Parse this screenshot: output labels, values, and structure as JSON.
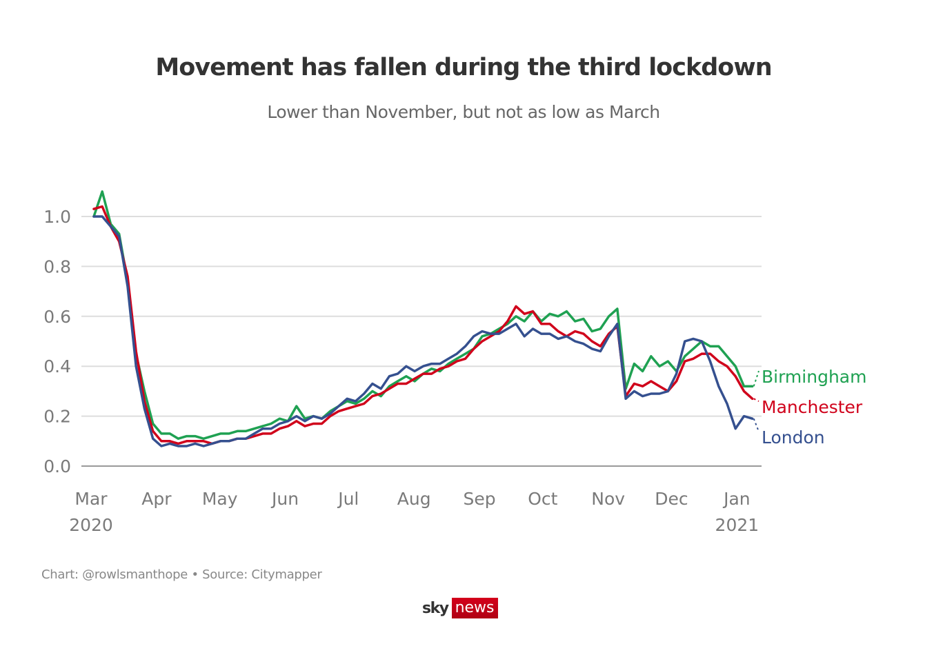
{
  "header": {
    "title": "Movement has fallen during the third lockdown",
    "subtitle": "Lower than November, but not as low as March"
  },
  "footer": {
    "credit": "Chart: @rowlsmanthope • Source: Citymapper",
    "logo_sky": "sky",
    "logo_news": "news"
  },
  "chart_data": {
    "type": "line",
    "title": "Movement has fallen during the third lockdown",
    "subtitle": "Lower than November, but not as low as March",
    "xlabel": "",
    "ylabel": "",
    "ylim": [
      0,
      1.1
    ],
    "grid": true,
    "y_ticks": [
      {
        "value": 0.0,
        "label": "0.0"
      },
      {
        "value": 0.2,
        "label": "0.2"
      },
      {
        "value": 0.4,
        "label": "0.4"
      },
      {
        "value": 0.6,
        "label": "0.6"
      },
      {
        "value": 0.8,
        "label": "0.8"
      },
      {
        "value": 1.0,
        "label": "1.0"
      }
    ],
    "x_ticks": [
      {
        "day": 0,
        "label": "Mar",
        "sublabel": "2020"
      },
      {
        "day": 31,
        "label": "Apr"
      },
      {
        "day": 61,
        "label": "May"
      },
      {
        "day": 92,
        "label": "Jun"
      },
      {
        "day": 122,
        "label": "Jul"
      },
      {
        "day": 153,
        "label": "Aug"
      },
      {
        "day": 184,
        "label": "Sep"
      },
      {
        "day": 214,
        "label": "Oct"
      },
      {
        "day": 245,
        "label": "Nov"
      },
      {
        "day": 275,
        "label": "Dec"
      },
      {
        "day": 306,
        "label": "Jan",
        "sublabel": "2021"
      }
    ],
    "x_unit": "days since 1 Mar 2020 (sampled every 4 days)",
    "x": [
      0,
      4,
      8,
      12,
      16,
      20,
      24,
      28,
      32,
      36,
      40,
      44,
      48,
      52,
      56,
      60,
      64,
      68,
      72,
      76,
      80,
      84,
      88,
      92,
      96,
      100,
      104,
      108,
      112,
      116,
      120,
      124,
      128,
      132,
      136,
      140,
      144,
      148,
      152,
      156,
      160,
      164,
      168,
      172,
      176,
      180,
      184,
      188,
      192,
      196,
      200,
      204,
      208,
      212,
      216,
      220,
      224,
      228,
      232,
      236,
      240,
      244,
      248,
      252,
      256,
      260,
      264,
      268,
      272,
      276,
      280,
      284,
      288,
      292,
      296,
      300,
      304,
      308,
      312
    ],
    "series": [
      {
        "name": "Birmingham",
        "color": "#1fa152",
        "values": [
          1.0,
          1.1,
          0.97,
          0.93,
          0.74,
          0.45,
          0.3,
          0.17,
          0.13,
          0.13,
          0.11,
          0.12,
          0.12,
          0.11,
          0.12,
          0.13,
          0.13,
          0.14,
          0.14,
          0.15,
          0.16,
          0.17,
          0.19,
          0.18,
          0.24,
          0.19,
          0.2,
          0.19,
          0.22,
          0.24,
          0.26,
          0.25,
          0.27,
          0.3,
          0.28,
          0.32,
          0.34,
          0.36,
          0.34,
          0.37,
          0.39,
          0.38,
          0.41,
          0.43,
          0.45,
          0.47,
          0.52,
          0.53,
          0.55,
          0.57,
          0.6,
          0.58,
          0.62,
          0.58,
          0.61,
          0.6,
          0.62,
          0.58,
          0.59,
          0.54,
          0.55,
          0.6,
          0.63,
          0.31,
          0.41,
          0.38,
          0.44,
          0.4,
          0.42,
          0.38,
          0.44,
          0.47,
          0.5,
          0.48,
          0.48,
          0.44,
          0.4,
          0.32,
          0.32
        ]
      },
      {
        "name": "Manchester",
        "color": "#d0021b",
        "values": [
          1.03,
          1.04,
          0.96,
          0.9,
          0.76,
          0.46,
          0.26,
          0.14,
          0.1,
          0.1,
          0.09,
          0.1,
          0.1,
          0.1,
          0.09,
          0.1,
          0.1,
          0.11,
          0.11,
          0.12,
          0.13,
          0.13,
          0.15,
          0.16,
          0.18,
          0.16,
          0.17,
          0.17,
          0.2,
          0.22,
          0.23,
          0.24,
          0.25,
          0.28,
          0.29,
          0.31,
          0.33,
          0.33,
          0.35,
          0.37,
          0.37,
          0.39,
          0.4,
          0.42,
          0.43,
          0.47,
          0.5,
          0.52,
          0.54,
          0.58,
          0.64,
          0.61,
          0.62,
          0.57,
          0.57,
          0.54,
          0.52,
          0.54,
          0.53,
          0.5,
          0.48,
          0.53,
          0.56,
          0.28,
          0.33,
          0.32,
          0.34,
          0.32,
          0.3,
          0.34,
          0.42,
          0.43,
          0.45,
          0.45,
          0.42,
          0.4,
          0.36,
          0.3,
          0.27
        ]
      },
      {
        "name": "London",
        "color": "#35508f",
        "values": [
          1.0,
          1.0,
          0.96,
          0.92,
          0.72,
          0.4,
          0.23,
          0.11,
          0.08,
          0.09,
          0.08,
          0.08,
          0.09,
          0.08,
          0.09,
          0.1,
          0.1,
          0.11,
          0.11,
          0.13,
          0.15,
          0.15,
          0.17,
          0.18,
          0.2,
          0.18,
          0.2,
          0.19,
          0.21,
          0.24,
          0.27,
          0.26,
          0.29,
          0.33,
          0.31,
          0.36,
          0.37,
          0.4,
          0.38,
          0.4,
          0.41,
          0.41,
          0.43,
          0.45,
          0.48,
          0.52,
          0.54,
          0.53,
          0.53,
          0.55,
          0.57,
          0.52,
          0.55,
          0.53,
          0.53,
          0.51,
          0.52,
          0.5,
          0.49,
          0.47,
          0.46,
          0.52,
          0.57,
          0.27,
          0.3,
          0.28,
          0.29,
          0.29,
          0.3,
          0.37,
          0.5,
          0.51,
          0.5,
          0.42,
          0.32,
          0.25,
          0.15,
          0.2,
          0.19
        ]
      }
    ],
    "legend": [
      {
        "label": "Birmingham",
        "color": "#1fa152"
      },
      {
        "label": "Manchester",
        "color": "#d0021b"
      },
      {
        "label": "London",
        "color": "#35508f"
      }
    ],
    "legend_placement": "right (direct labels at line ends)"
  }
}
